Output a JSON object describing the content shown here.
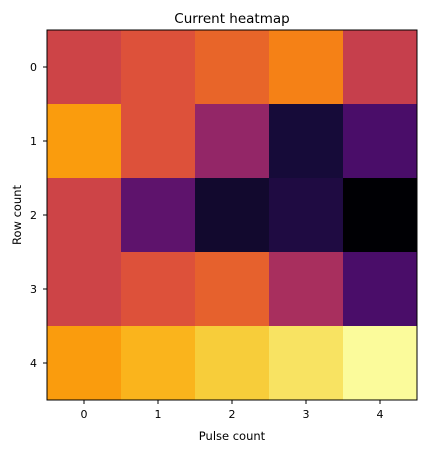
{
  "chart_data": {
    "type": "heatmap",
    "title": "Current heatmap",
    "xlabel": "Pulse count",
    "ylabel": "Row count",
    "x_ticks": [
      "0",
      "1",
      "2",
      "3",
      "4"
    ],
    "y_ticks": [
      "0",
      "1",
      "2",
      "3",
      "4"
    ],
    "colormap": "inferno",
    "vmin": 0.0,
    "vmax": 1.0,
    "grid": false,
    "values": [
      [
        0.55,
        0.6,
        0.65,
        0.72,
        0.53
      ],
      [
        0.78,
        0.6,
        0.4,
        0.1,
        0.22
      ],
      [
        0.55,
        0.27,
        0.08,
        0.12,
        0.0
      ],
      [
        0.55,
        0.6,
        0.64,
        0.45,
        0.22
      ],
      [
        0.78,
        0.83,
        0.88,
        0.93,
        0.99
      ]
    ]
  }
}
